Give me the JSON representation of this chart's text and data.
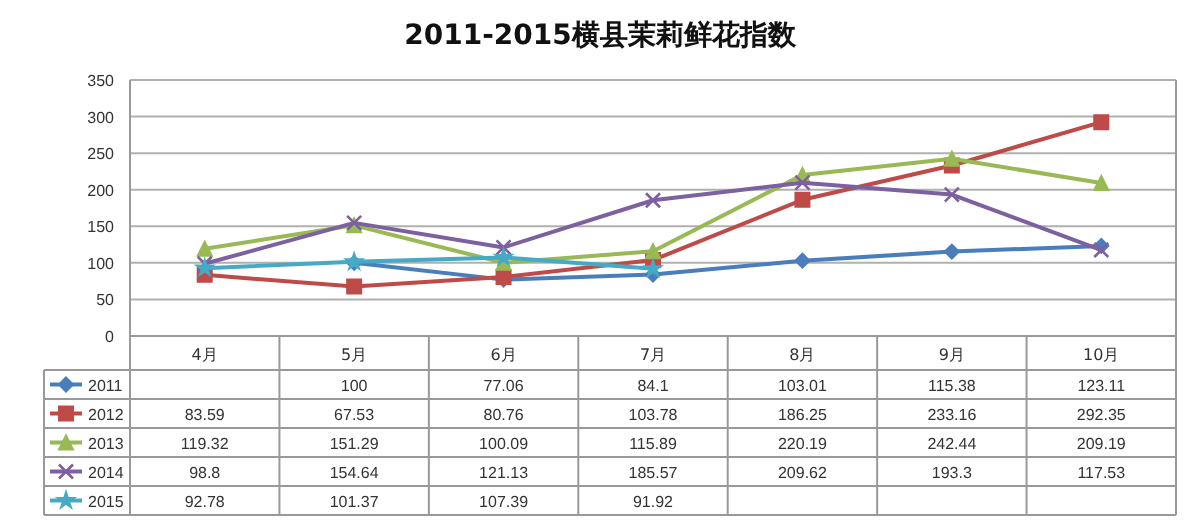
{
  "chart_data": {
    "type": "line",
    "title": "2011-2015横县茉莉鲜花指数",
    "categories": [
      "4月",
      "5月",
      "6月",
      "7月",
      "8月",
      "9月",
      "10月"
    ],
    "series": [
      {
        "name": "2011",
        "color": "#4a7ebb",
        "marker": "diamond",
        "values": [
          null,
          100,
          77.06,
          84.1,
          103.01,
          115.38,
          123.11
        ]
      },
      {
        "name": "2012",
        "color": "#be4b48",
        "marker": "square",
        "values": [
          83.59,
          67.53,
          80.76,
          103.78,
          186.25,
          233.16,
          292.35
        ]
      },
      {
        "name": "2013",
        "color": "#98b954",
        "marker": "triangle",
        "values": [
          119.32,
          151.29,
          100.09,
          115.89,
          220.19,
          242.44,
          209.19
        ]
      },
      {
        "name": "2014",
        "color": "#7d60a0",
        "marker": "cross",
        "values": [
          98.8,
          154.64,
          121.13,
          185.57,
          209.62,
          193.3,
          117.53
        ]
      },
      {
        "name": "2015",
        "color": "#46aac5",
        "marker": "star",
        "values": [
          92.78,
          101.37,
          107.39,
          91.92,
          null,
          null,
          null
        ]
      }
    ],
    "ylim": [
      0,
      350
    ],
    "yticks": [
      0,
      50,
      100,
      150,
      200,
      250,
      300,
      350
    ],
    "grid": "y",
    "legend": "left",
    "data_labels": true
  }
}
